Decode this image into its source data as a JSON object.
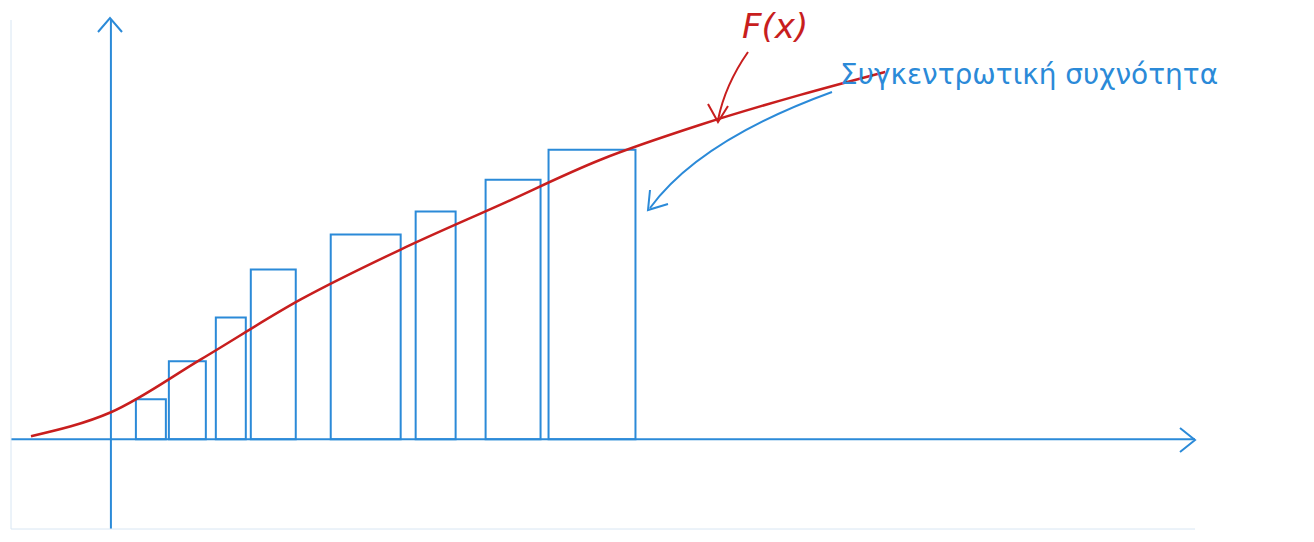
{
  "chart_data": {
    "type": "bar",
    "annotations": [
      "F(x)",
      "Συγκεντρωτική συχνότητα"
    ],
    "bar_x0": [
      0.5,
      1.16,
      2.1,
      2.8,
      4.4,
      6.1,
      7.5,
      8.76
    ],
    "bar_x1": [
      1.1,
      1.9,
      2.7,
      3.7,
      5.8,
      6.9,
      8.6,
      10.5
    ],
    "values": [
      0.8,
      1.56,
      2.44,
      3.4,
      4.1,
      4.56,
      5.2,
      5.8
    ],
    "color": "#2b8ad8",
    "curve": {
      "type": "line",
      "x": [
        -1.6,
        0,
        1.8,
        3.8,
        5.8,
        7.8,
        9.8,
        11.8,
        13.8,
        15.5
      ],
      "values": [
        0.06,
        0.54,
        1.6,
        2.8,
        3.8,
        4.7,
        5.6,
        6.3,
        6.9,
        7.36
      ],
      "color": "#c81e1e"
    },
    "xlim": [
      -2,
      21.7
    ],
    "ylim": [
      -1.8,
      8.4
    ],
    "xticks": [],
    "yticks": [],
    "tick_labels": false
  }
}
